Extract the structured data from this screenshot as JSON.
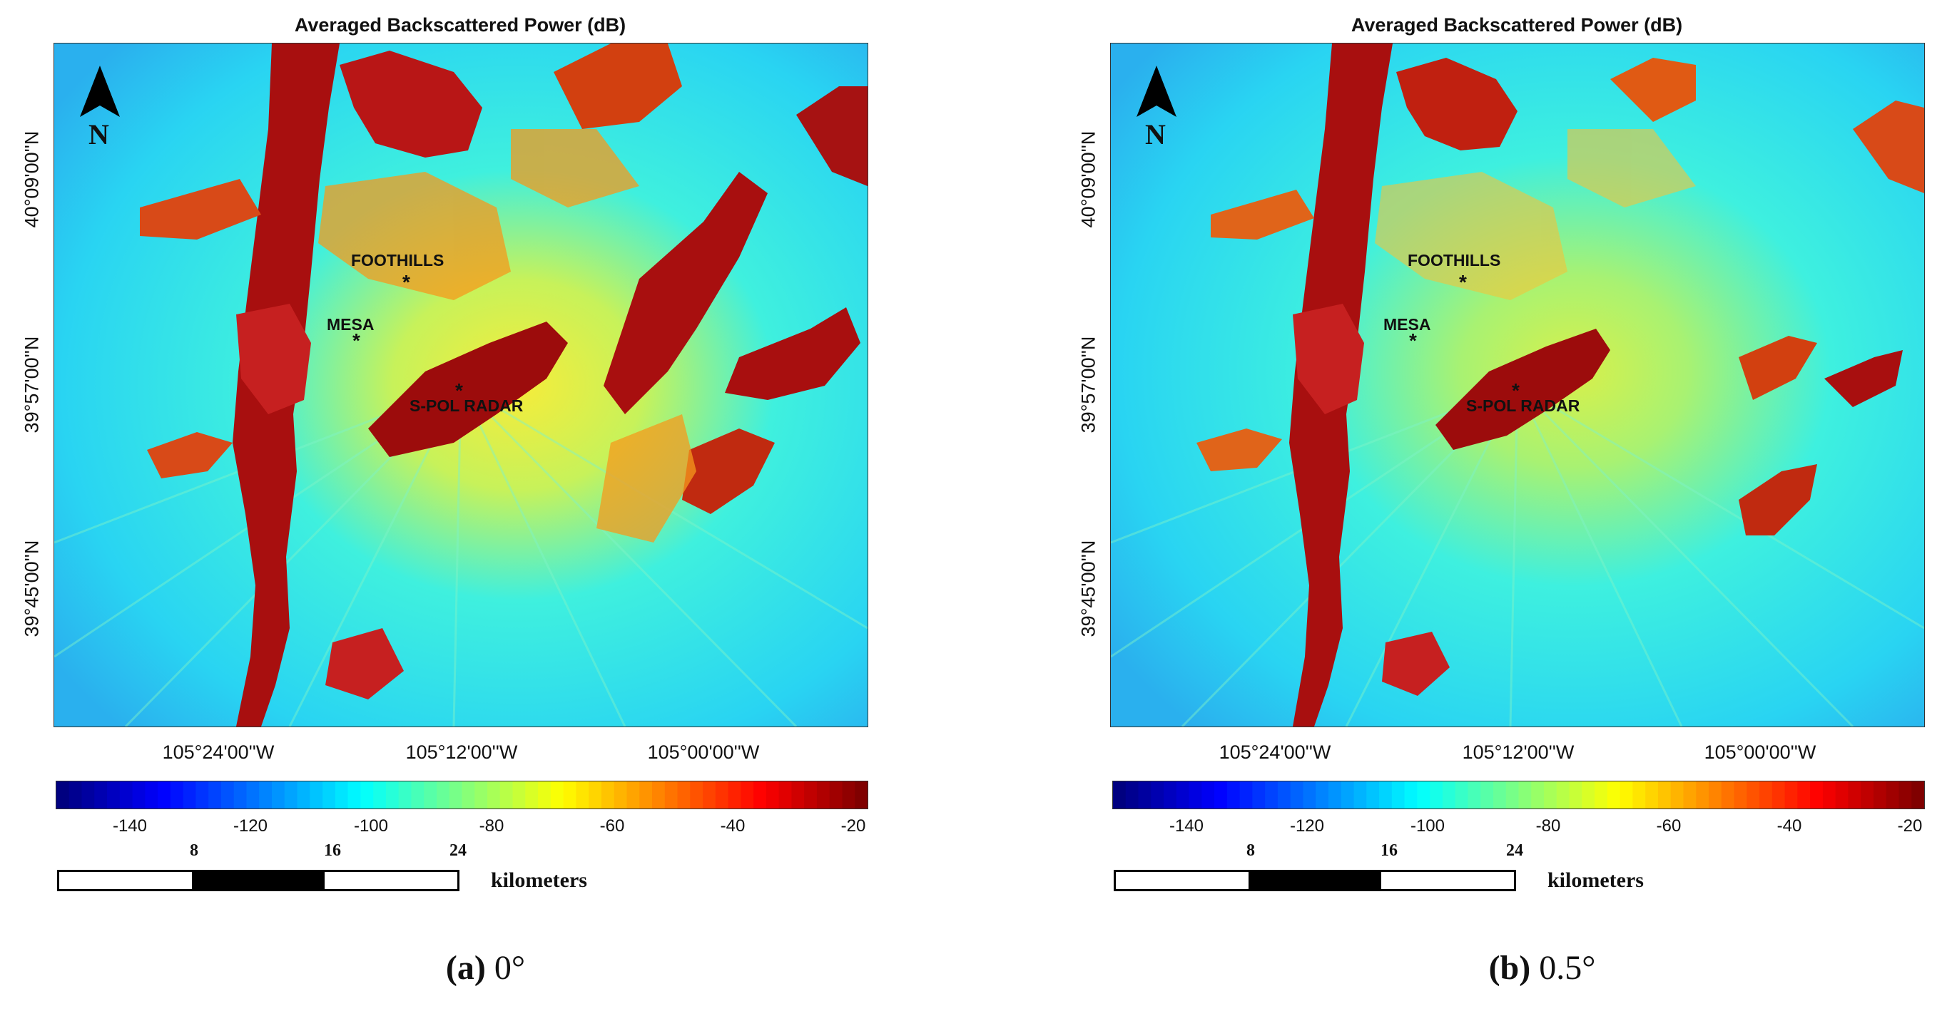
{
  "chart_data": [
    {
      "type": "heatmap",
      "panel_id": "a",
      "title": "Averaged Backscattered Power (dB)",
      "caption_label": "(a)",
      "caption_text": "0°",
      "x_ticks": [
        "105°24'00''W",
        "105°12'00''W",
        "105°00'00''W"
      ],
      "y_ticks": [
        "40°09'00''N",
        "39°57'00''N",
        "39°45'00''N"
      ],
      "colorbar": {
        "range": [
          -150,
          -15
        ],
        "ticks": [
          "-140",
          "-120",
          "-100",
          "-80",
          "-60",
          "-40",
          "-20"
        ],
        "colormap": "jet"
      },
      "sites": [
        {
          "label": "FOOTHILLS",
          "marker": "*"
        },
        {
          "label": "MESA",
          "marker": "*"
        },
        {
          "label": "S-POL RADAR",
          "marker": "*"
        }
      ],
      "north_arrow": "N",
      "scale_bar": {
        "ticks": [
          "8",
          "16",
          "24"
        ],
        "unit": "kilometers"
      }
    },
    {
      "type": "heatmap",
      "panel_id": "b",
      "title": "Averaged Backscattered Power (dB)",
      "caption_label": "(b)",
      "caption_text": "0.5°",
      "x_ticks": [
        "105°24'00''W",
        "105°12'00''W",
        "105°00'00''W"
      ],
      "y_ticks": [
        "40°09'00''N",
        "39°57'00''N",
        "39°45'00''N"
      ],
      "colorbar": {
        "range": [
          -150,
          -15
        ],
        "ticks": [
          "-140",
          "-120",
          "-100",
          "-80",
          "-60",
          "-40",
          "-20"
        ],
        "colormap": "jet"
      },
      "sites": [
        {
          "label": "FOOTHILLS",
          "marker": "*"
        },
        {
          "label": "MESA",
          "marker": "*"
        },
        {
          "label": "S-POL RADAR",
          "marker": "*"
        }
      ],
      "north_arrow": "N",
      "scale_bar": {
        "ticks": [
          "8",
          "16",
          "24"
        ],
        "unit": "kilometers"
      }
    }
  ]
}
